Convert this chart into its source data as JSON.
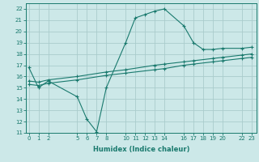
{
  "xlabel": "Humidex (Indice chaleur)",
  "bg_color": "#cce8e8",
  "grid_color": "#aacccc",
  "line_color": "#1a7a6e",
  "line1_x": [
    0,
    1,
    2,
    5,
    6,
    7,
    8,
    10,
    11,
    12,
    13,
    14,
    16,
    17,
    18,
    19,
    20,
    22,
    23
  ],
  "line1_y": [
    16.8,
    15.0,
    15.6,
    14.2,
    12.2,
    11.1,
    15.0,
    19.0,
    21.2,
    21.5,
    21.8,
    22.0,
    20.5,
    19.0,
    18.4,
    18.4,
    18.5,
    18.5,
    18.6
  ],
  "line2_x": [
    0,
    1,
    2,
    5,
    8,
    10,
    13,
    14,
    16,
    17,
    19,
    20,
    22,
    23
  ],
  "line2_y": [
    15.6,
    15.5,
    15.7,
    16.0,
    16.4,
    16.6,
    17.0,
    17.1,
    17.3,
    17.4,
    17.6,
    17.7,
    17.9,
    18.0
  ],
  "line3_x": [
    0,
    1,
    2,
    5,
    8,
    10,
    13,
    14,
    16,
    17,
    19,
    20,
    22,
    23
  ],
  "line3_y": [
    15.3,
    15.2,
    15.4,
    15.7,
    16.1,
    16.3,
    16.6,
    16.7,
    17.0,
    17.1,
    17.3,
    17.4,
    17.6,
    17.7
  ],
  "xlim": [
    -0.3,
    23.5
  ],
  "ylim": [
    11,
    22.5
  ],
  "xticks": [
    0,
    1,
    2,
    5,
    6,
    7,
    8,
    10,
    11,
    12,
    13,
    14,
    16,
    17,
    18,
    19,
    20,
    22,
    23
  ],
  "yticks": [
    11,
    12,
    13,
    14,
    15,
    16,
    17,
    18,
    19,
    20,
    21,
    22
  ],
  "tick_fontsize": 5.0,
  "xlabel_fontsize": 6.0
}
